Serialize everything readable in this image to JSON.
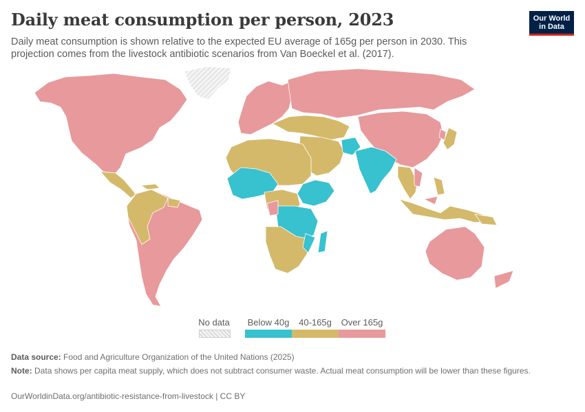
{
  "header": {
    "title": "Daily meat consumption per person, 2023",
    "subtitle": "Daily meat consumption is shown relative to the expected EU average of 165g per person in 2030. This projection comes from the livestock antibiotic scenarios from Van Boeckel et al. (2017)."
  },
  "logo": {
    "line1": "Our World",
    "line2": "in Data"
  },
  "legend": {
    "no_data": "No data",
    "bins": [
      {
        "label": "Below 40g",
        "color": "#38c1cf"
      },
      {
        "label": "40-165g",
        "color": "#d4b96a"
      },
      {
        "label": "Over 165g",
        "color": "#e8999b"
      }
    ]
  },
  "map_colors": {
    "below_40g": "#38c1cf",
    "40_165g": "#d4b96a",
    "over_165g": "#e8999b",
    "no_data": "#e6e6e6",
    "border": "#ffffff"
  },
  "footer": {
    "source_label": "Data source:",
    "source": "Food and Agriculture Organization of the United Nations (2025)",
    "note_label": "Note:",
    "note": "Data shows per capita meat supply, which does not subtract consumer waste. Actual meat consumption will be lower than these figures.",
    "url": "OurWorldinData.org/antibiotic-resistance-from-livestock | CC BY"
  }
}
